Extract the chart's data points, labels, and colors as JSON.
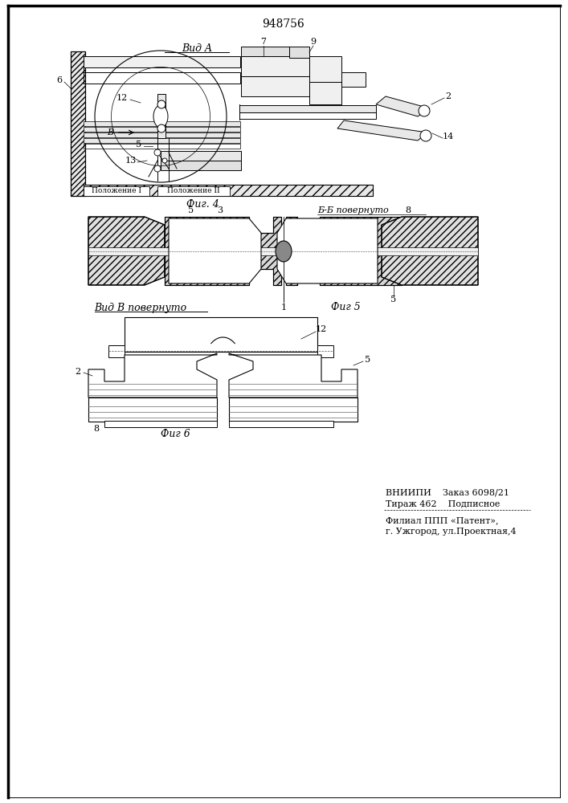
{
  "patent_number": "948756",
  "fig4_label": "Фиг. 4",
  "fig5_label": "Фиг 5",
  "fig6_label": "Фиг 6",
  "view_a_label": "Вид A",
  "view_b_label": "Вид В повернуто",
  "section_bb_label": "Б-Б повернуто",
  "footer_line1": "ВНИИПИ    Заказ 6098/21",
  "footer_line2": "Тираж 462    Подписное",
  "footer_line3": "Филиал ППП «Патент»,",
  "footer_line4": "г. Ужгород, ул.Проектная,4",
  "bg_color": "#ffffff",
  "line_color": "#000000"
}
